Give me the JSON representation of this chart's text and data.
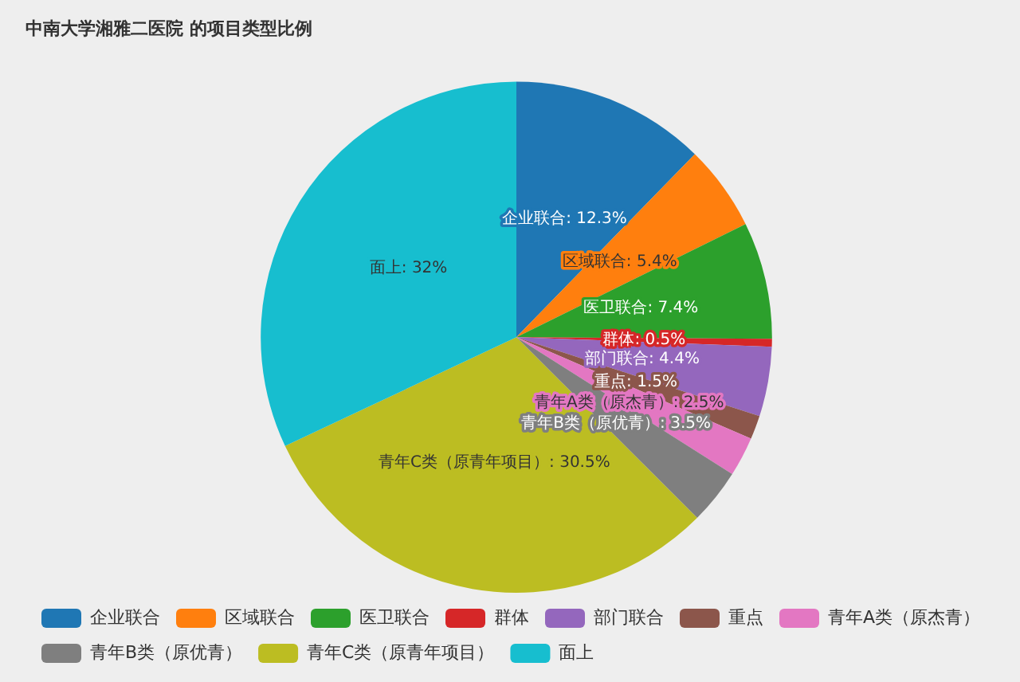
{
  "chart_data": {
    "type": "pie",
    "title": "中南大学湘雅二医院 的项目类型比例",
    "categories": [
      "企业联合",
      "区域联合",
      "医卫联合",
      "群体",
      "部门联合",
      "重点",
      "青年A类（原杰青）",
      "青年B类（原优青）",
      "青年C类（原青年项目）",
      "面上"
    ],
    "values": [
      12.3,
      5.4,
      7.4,
      0.5,
      4.4,
      1.5,
      2.5,
      3.5,
      30.5,
      32
    ],
    "colors": [
      "#1f77b4",
      "#ff7f0e",
      "#2ca02c",
      "#d62728",
      "#9467bd",
      "#8c564b",
      "#e377c2",
      "#7f7f7f",
      "#bcbd22",
      "#17becf"
    ],
    "value_labels": [
      "企业联合: 12.3%",
      "区域联合: 5.4%",
      "医卫联合: 7.4%",
      "群体: 0.5%",
      "部门联合: 4.4%",
      "重点: 1.5%",
      "青年A类（原杰青）: 2.5%",
      "青年B类（原优青）: 3.5%",
      "青年C类（原青年项目）: 30.5%",
      "面上: 32%"
    ],
    "legend": "bottom left"
  }
}
